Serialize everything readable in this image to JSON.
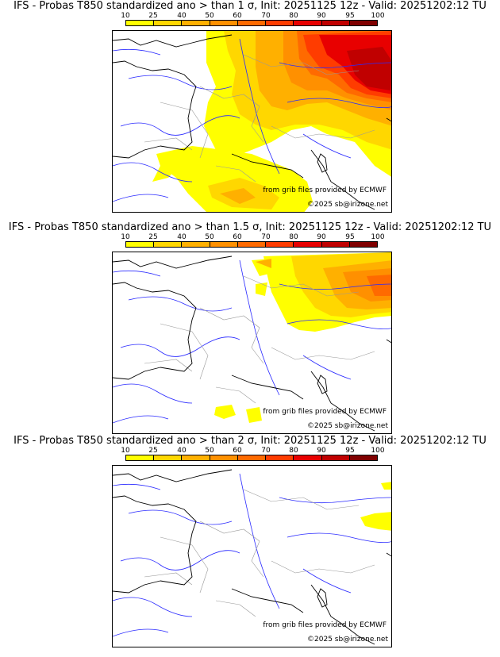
{
  "panels": [
    {
      "title": "IFS - Probas T850  standardized ano > than 1 σ, Init: 20251125 12z - Valid: 20251202:12 TU",
      "threshold": "1 σ",
      "scale_labels": [
        "10",
        "25",
        "40",
        "50",
        "60",
        "70",
        "80",
        "90",
        "95",
        "100"
      ],
      "credit_source": "from grib files provided by ECMWF",
      "credit_copyright": "©2025 sb@irizone.net"
    },
    {
      "title": "IFS - Probas T850  standardized ano > than 1.5 σ, Init: 20251125 12z - Valid: 20251202:12 TU",
      "threshold": "1.5 σ",
      "scale_labels": [
        "10",
        "25",
        "40",
        "50",
        "60",
        "70",
        "80",
        "90",
        "95",
        "100"
      ],
      "credit_source": "from grib files provided by ECMWF",
      "credit_copyright": "©2025 sb@irizone.net"
    },
    {
      "title": "IFS - Probas T850  standardized ano > than 2 σ, Init: 20251125 12z - Valid: 20251202:12 TU",
      "threshold": "2 σ",
      "scale_labels": [
        "10",
        "25",
        "40",
        "50",
        "60",
        "70",
        "80",
        "90",
        "95",
        "100"
      ],
      "credit_source": "from grib files provided by ECMWF",
      "credit_copyright": "©2025 sb@irizone.net"
    }
  ],
  "colors": {
    "scale": [
      "#ffff00",
      "#ffd700",
      "#ffb000",
      "#ff9000",
      "#ff6a00",
      "#ff3c00",
      "#e80000",
      "#c00000",
      "#800000"
    ],
    "coast": "#000000",
    "rivers": "#2a2aff",
    "borders": "#999999"
  }
}
